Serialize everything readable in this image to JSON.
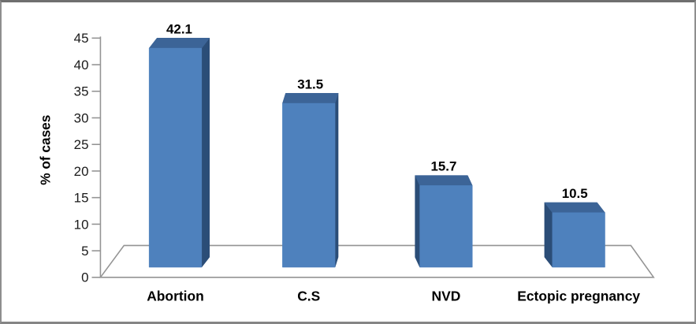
{
  "chart_data": {
    "type": "bar",
    "style": "3d-column",
    "title": "",
    "xlabel": "",
    "ylabel": "% of cases",
    "categories": [
      "Abortion",
      "C.S",
      "NVD",
      "Ectopic pregnancy"
    ],
    "values": [
      42.1,
      31.5,
      15.7,
      10.5
    ],
    "data_labels": [
      "42.1",
      "31.5",
      "15.7",
      "10.5"
    ],
    "yticks": [
      0,
      5,
      10,
      15,
      20,
      25,
      30,
      35,
      40,
      45
    ],
    "ylim": [
      0,
      45
    ],
    "grid": false,
    "legend_position": "none"
  },
  "colors": {
    "bar_front": "#4E81BD",
    "bar_top": "#3C6497",
    "bar_side": "#2B4D77",
    "axis_line": "#949494",
    "label_text": "#000000",
    "tick_text": "#1A1A1A",
    "frame_border": "#8E8E8E",
    "background": "#FFFFFF"
  }
}
